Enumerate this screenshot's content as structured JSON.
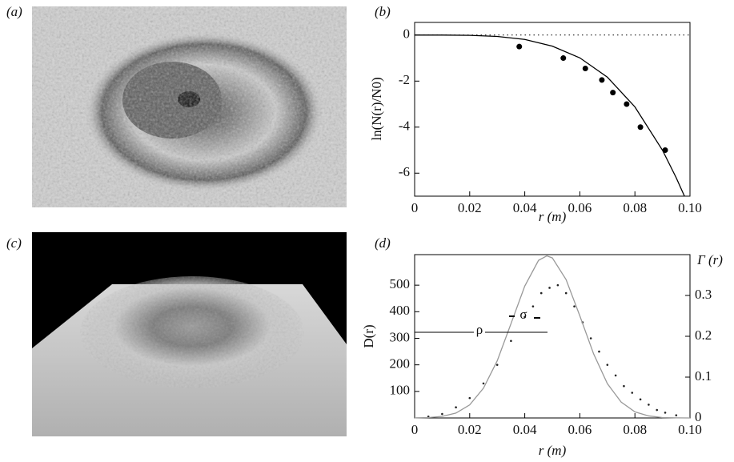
{
  "images": [
    {
      "label": "(a)"
    },
    {
      "label": "(c)"
    }
  ],
  "chart_data": [
    {
      "type": "scatter",
      "panel_label": "(b)",
      "xlabel": "r (m)",
      "ylabel": "ln(N(r)/N0)",
      "xlim": [
        0,
        0.1
      ],
      "ylim": [
        -7,
        0.55
      ],
      "xticks": [
        0,
        0.02,
        0.04,
        0.06,
        0.08,
        {
          "value": 0.1,
          "label": "0.10"
        }
      ],
      "yticks": [
        -6,
        -4,
        -2,
        0
      ],
      "series": [
        {
          "type": "scatter",
          "color": "#000000",
          "marker_size": 3.5,
          "x": [
            0.038,
            0.054,
            0.062,
            0.068,
            0.072,
            0.077,
            0.082,
            0.091
          ],
          "values": [
            -0.5,
            -1.0,
            -1.45,
            -1.95,
            -2.5,
            -3.0,
            -4.0,
            -5.0
          ]
        },
        {
          "type": "line",
          "color": "#000000",
          "x": [
            0,
            0.01,
            0.02,
            0.03,
            0.04,
            0.05,
            0.06,
            0.07,
            0.08,
            0.09,
            0.095,
            0.098
          ],
          "values": [
            0,
            0,
            -0.01,
            -0.06,
            -0.19,
            -0.48,
            -0.99,
            -1.83,
            -3.12,
            -5.0,
            -6.2,
            -7.0
          ]
        },
        {
          "type": "line",
          "style": "dotted",
          "color": "#000000",
          "x": [
            0,
            0.1
          ],
          "values": [
            0,
            0
          ]
        }
      ]
    },
    {
      "type": "scatter",
      "panel_label": "(d)",
      "xlabel": "r (m)",
      "ylabel": "D(r)",
      "y2label": "Γ (r)",
      "xlim": [
        0,
        0.1
      ],
      "ylim": [
        0,
        615
      ],
      "y2lim": [
        0,
        0.4
      ],
      "xticks": [
        0,
        0.02,
        0.04,
        0.06,
        0.08,
        {
          "value": 0.1,
          "label": "0.10"
        }
      ],
      "yticks": [
        100,
        200,
        300,
        400,
        500
      ],
      "y2ticks": [
        0,
        0.1,
        0.2,
        0.3
      ],
      "annotations": [
        "ρ",
        "σ"
      ],
      "series": [
        {
          "type": "scatter",
          "color": "#222222",
          "marker_size": 1.3,
          "x": [
            0.005,
            0.01,
            0.015,
            0.02,
            0.025,
            0.03,
            0.035,
            0.04,
            0.043,
            0.046,
            0.049,
            0.052,
            0.055,
            0.058,
            0.061,
            0.064,
            0.067,
            0.07,
            0.073,
            0.076,
            0.079,
            0.082,
            0.085,
            0.088,
            0.091,
            0.095
          ],
          "values": [
            5,
            15,
            40,
            75,
            130,
            200,
            290,
            380,
            420,
            470,
            490,
            500,
            470,
            420,
            360,
            300,
            250,
            200,
            160,
            120,
            95,
            70,
            50,
            30,
            20,
            10
          ]
        },
        {
          "type": "line",
          "axis": "y2",
          "color": "#999999",
          "x": [
            0,
            0.005,
            0.01,
            0.015,
            0.02,
            0.025,
            0.03,
            0.035,
            0.04,
            0.045,
            0.048,
            0.05,
            0.055,
            0.06,
            0.065,
            0.07,
            0.075,
            0.08,
            0.085,
            0.09,
            0.095,
            0.1
          ],
          "values": [
            0.0002,
            0.001,
            0.004,
            0.012,
            0.032,
            0.073,
            0.14,
            0.231,
            0.323,
            0.386,
            0.397,
            0.392,
            0.339,
            0.25,
            0.157,
            0.084,
            0.039,
            0.015,
            0.005,
            0.001,
            0.0003,
            0
          ]
        }
      ]
    }
  ]
}
